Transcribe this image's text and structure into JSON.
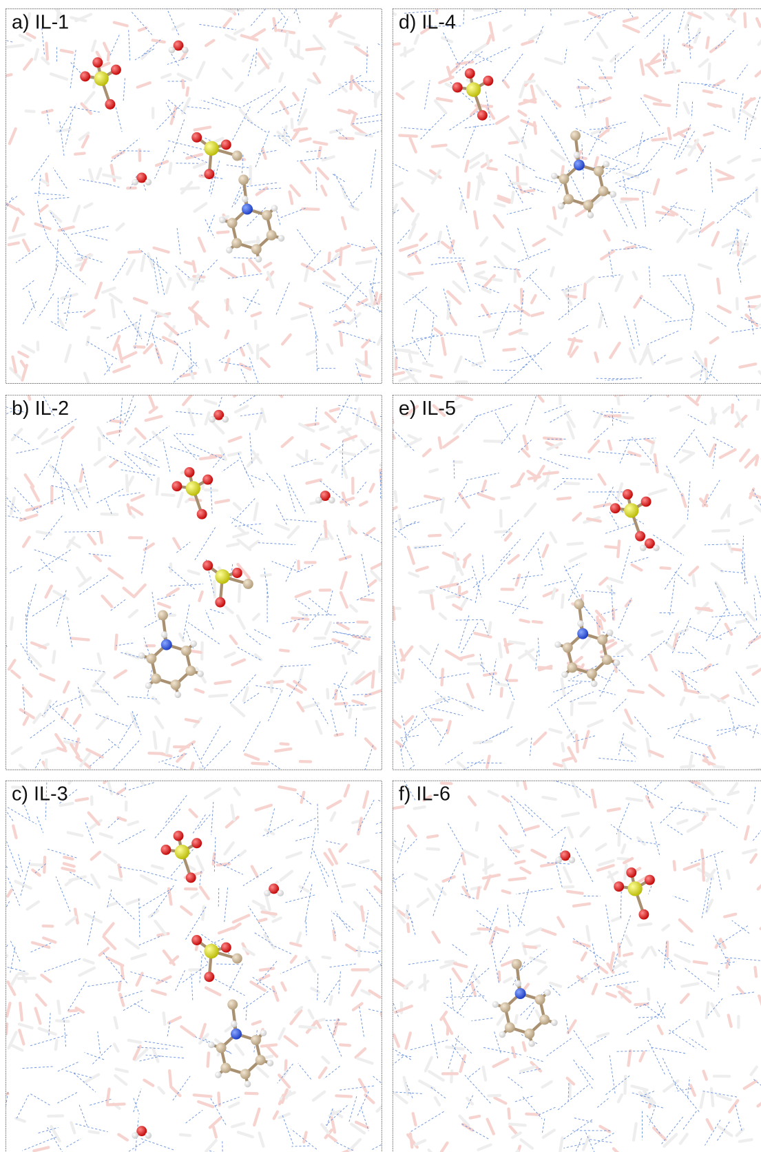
{
  "panels": [
    {
      "label": "a) IL-1"
    },
    {
      "label": "b) IL-2"
    },
    {
      "label": "c) IL-3"
    },
    {
      "label": "d) IL-4"
    },
    {
      "label": "e) IL-5"
    },
    {
      "label": "f) IL-6"
    }
  ]
}
